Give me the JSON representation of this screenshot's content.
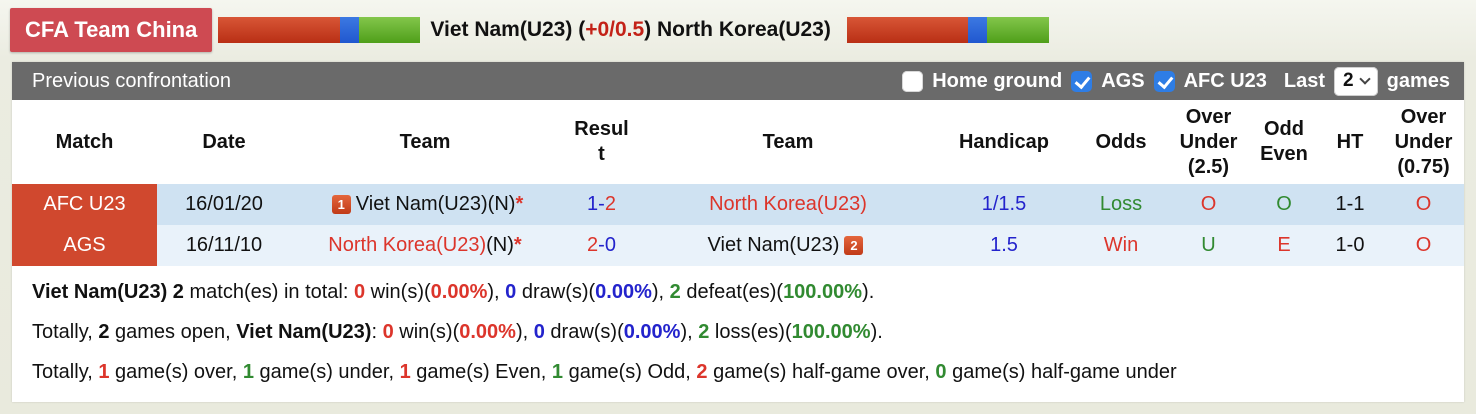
{
  "colors": {
    "red": "#dc352b",
    "blue": "#2323cc",
    "green": "#318a31",
    "match_cell_bg": "#d0482e",
    "row1_bg": "#cfe2f2",
    "row2_bg": "#e9f2fa",
    "cfa_badge_bg": "#ce4a52",
    "checkbox_checked_blue": "#2e7de5",
    "toolbar_gray": "#6a6a6a"
  },
  "header": {
    "badge_label": "CFA Team China",
    "title_segments": [
      {
        "t": "Viet Nam(U23) ("
      },
      {
        "t": "+0/0.5",
        "c": "#c32218"
      },
      {
        "t": ") North Korea(U23)"
      }
    ]
  },
  "toolbar": {
    "title": "Previous confrontation",
    "filters": [
      {
        "label": "Home ground",
        "checked": false
      },
      {
        "label": "AGS",
        "checked": true
      },
      {
        "label": "AFC U23",
        "checked": true
      }
    ],
    "last_label": "Last",
    "last_value": "2",
    "games_label": "games"
  },
  "table": {
    "columns": [
      {
        "label": "Match"
      },
      {
        "label": "Date"
      },
      {
        "label": "Team"
      },
      {
        "label": "Resul\nt"
      },
      {
        "label": "Team"
      },
      {
        "label": "Handicap"
      },
      {
        "label": "Odds"
      },
      {
        "label": "Over\nUnder\n(2.5)"
      },
      {
        "label": "Odd\nEven"
      },
      {
        "label": "HT"
      },
      {
        "label": "Over\nUnder\n(0.75)"
      }
    ],
    "rows": [
      {
        "match": "AFC U23",
        "date": "16/01/20",
        "team1_badge": "1",
        "team1_segments": [
          {
            "t": "Viet Nam(U23)(N)"
          },
          {
            "t": "*",
            "c": "#dc352b",
            "b": true
          }
        ],
        "result_segments": [
          {
            "t": "1-",
            "c": "#2323cc"
          },
          {
            "t": "2",
            "c": "#dc352b"
          }
        ],
        "team2_segments": [
          {
            "t": "North Korea(U23)",
            "c": "#dc352b"
          }
        ],
        "handicap": "1/1.5",
        "odds": "Loss",
        "odds_color": "#318a31",
        "ou25": "O",
        "ou25_color": "#dc352b",
        "oddeven": "O",
        "oddeven_color": "#318a31",
        "ht": "1-1",
        "ou075": "O",
        "ou075_color": "#dc352b"
      },
      {
        "match": "AGS",
        "date": "16/11/10",
        "team1_segments": [
          {
            "t": "North Korea(U23)",
            "c": "#dc352b"
          },
          {
            "t": "(N)"
          },
          {
            "t": "*",
            "c": "#dc352b",
            "b": true
          }
        ],
        "result_segments": [
          {
            "t": "2",
            "c": "#dc352b"
          },
          {
            "t": "-0",
            "c": "#2323cc"
          }
        ],
        "team2_segments": [
          {
            "t": "Viet Nam(U23)"
          }
        ],
        "team2_badge": "2",
        "handicap": "1.5",
        "odds": "Win",
        "odds_color": "#dc352b",
        "ou25": "U",
        "ou25_color": "#318a31",
        "oddeven": "E",
        "oddeven_color": "#dc352b",
        "ht": "1-0",
        "ou075": "O",
        "ou075_color": "#dc352b"
      }
    ]
  },
  "summary": [
    [
      {
        "t": "Viet Nam(U23) 2",
        "b": true
      },
      {
        "t": " match(es) in total: "
      },
      {
        "t": "0",
        "b": true,
        "c": "#dc352b"
      },
      {
        "t": " win(s)("
      },
      {
        "t": "0.00%",
        "b": true,
        "c": "#dc352b"
      },
      {
        "t": "), "
      },
      {
        "t": "0",
        "b": true,
        "c": "#2323cc"
      },
      {
        "t": " draw(s)("
      },
      {
        "t": "0.00%",
        "b": true,
        "c": "#2323cc"
      },
      {
        "t": "), "
      },
      {
        "t": "2",
        "b": true,
        "c": "#318a31"
      },
      {
        "t": " defeat(es)("
      },
      {
        "t": "100.00%",
        "b": true,
        "c": "#318a31"
      },
      {
        "t": ")."
      }
    ],
    [
      {
        "t": "Totally, "
      },
      {
        "t": "2",
        "b": true
      },
      {
        "t": " games open, "
      },
      {
        "t": "Viet Nam(U23)",
        "b": true
      },
      {
        "t": ": "
      },
      {
        "t": "0",
        "b": true,
        "c": "#dc352b"
      },
      {
        "t": " win(s)("
      },
      {
        "t": "0.00%",
        "b": true,
        "c": "#dc352b"
      },
      {
        "t": "), "
      },
      {
        "t": "0",
        "b": true,
        "c": "#2323cc"
      },
      {
        "t": " draw(s)("
      },
      {
        "t": "0.00%",
        "b": true,
        "c": "#2323cc"
      },
      {
        "t": "), "
      },
      {
        "t": "2",
        "b": true,
        "c": "#318a31"
      },
      {
        "t": " loss(es)("
      },
      {
        "t": "100.00%",
        "b": true,
        "c": "#318a31"
      },
      {
        "t": ")."
      }
    ],
    [
      {
        "t": "Totally, "
      },
      {
        "t": "1",
        "b": true,
        "c": "#dc352b"
      },
      {
        "t": " game(s) over, "
      },
      {
        "t": "1",
        "b": true,
        "c": "#318a31"
      },
      {
        "t": " game(s) under, "
      },
      {
        "t": "1",
        "b": true,
        "c": "#dc352b"
      },
      {
        "t": " game(s) Even, "
      },
      {
        "t": "1",
        "b": true,
        "c": "#318a31"
      },
      {
        "t": " game(s) Odd, "
      },
      {
        "t": "2",
        "b": true,
        "c": "#dc352b"
      },
      {
        "t": " game(s) half-game over, "
      },
      {
        "t": "0",
        "b": true,
        "c": "#318a31"
      },
      {
        "t": " game(s) half-game under"
      }
    ]
  ]
}
